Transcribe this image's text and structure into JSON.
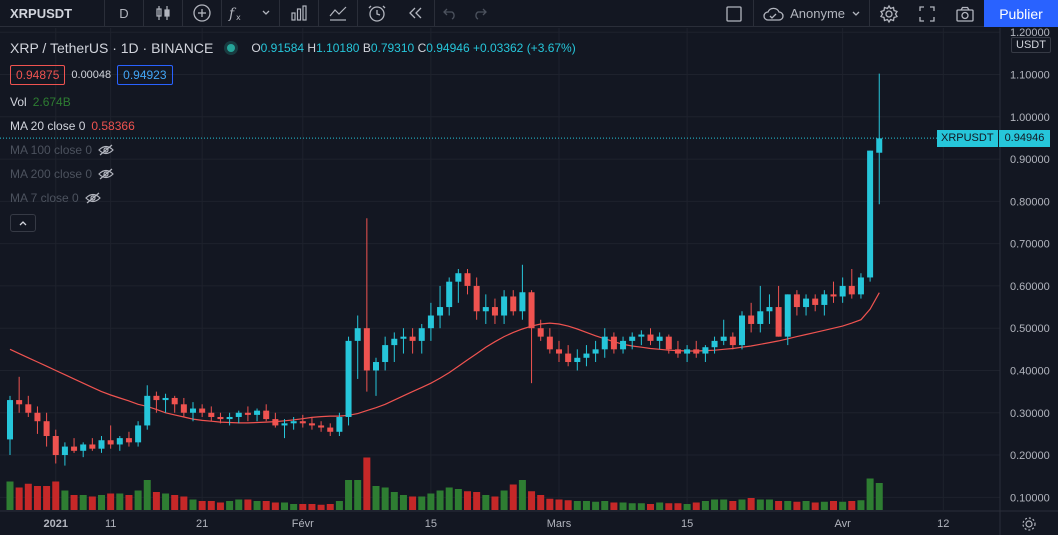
{
  "toolbar": {
    "symbol": "XRPUSDT",
    "interval": "D",
    "user_label": "Anonyme",
    "publish_label": "Publier"
  },
  "legend": {
    "title": "XRP / TetherUS · 1D · BINANCE",
    "o_key": "O",
    "o_val": "0.91584",
    "h_key": "H",
    "h_val": "1.10180",
    "b_key": "B",
    "b_val": "0.79310",
    "c_key": "C",
    "c_val": "0.94946",
    "change": "+0.03362 (+3.67%)",
    "bid": "0.94875",
    "spread": "0.00048",
    "ask": "0.94923",
    "vol_label": "Vol",
    "vol_val": "2.674B",
    "ma20_label": "MA 20 close 0",
    "ma20_val": "0.58366",
    "ma100_label": "MA 100 close 0",
    "ma200_label": "MA 200 close 0",
    "ma7_label": "MA 7 close 0"
  },
  "price_axis": {
    "currency": "USDT",
    "last_symbol": "XRPUSDT",
    "last_price": "0.94946",
    "ticks": [
      "1.20000",
      "1.10000",
      "1.00000",
      "0.90000",
      "0.80000",
      "0.70000",
      "0.60000",
      "0.50000",
      "0.40000",
      "0.30000",
      "0.20000",
      "0.10000"
    ]
  },
  "time_axis": {
    "labels": [
      {
        "text": "2021",
        "day": 5,
        "bold": true
      },
      {
        "text": "11",
        "day": 11,
        "bold": false
      },
      {
        "text": "21",
        "day": 21,
        "bold": false
      },
      {
        "text": "Févr",
        "day": 32,
        "bold": false
      },
      {
        "text": "15",
        "day": 46,
        "bold": false
      },
      {
        "text": "Mars",
        "day": 60,
        "bold": false
      },
      {
        "text": "15",
        "day": 74,
        "bold": false
      },
      {
        "text": "Avr",
        "day": 91,
        "bold": false
      },
      {
        "text": "12",
        "day": 102,
        "bold": false
      }
    ]
  },
  "colors": {
    "up": "#26c6da",
    "down": "#ef5350",
    "vol_up": "#2e7d32",
    "vol_down": "#c62828",
    "ma": "#ef5350",
    "accent": "#2962ff"
  },
  "chart_data": {
    "type": "candlestick",
    "title": "XRP / TetherUS 1D BINANCE",
    "ylim": [
      0.07,
      1.21
    ],
    "start_day": 0,
    "ohlc": [
      [
        0.237,
        0.34,
        0.2,
        0.33
      ],
      [
        0.33,
        0.385,
        0.3,
        0.32
      ],
      [
        0.32,
        0.34,
        0.29,
        0.3
      ],
      [
        0.3,
        0.315,
        0.25,
        0.28
      ],
      [
        0.28,
        0.3,
        0.22,
        0.245
      ],
      [
        0.245,
        0.26,
        0.18,
        0.2
      ],
      [
        0.2,
        0.23,
        0.175,
        0.22
      ],
      [
        0.22,
        0.24,
        0.205,
        0.21
      ],
      [
        0.21,
        0.23,
        0.195,
        0.225
      ],
      [
        0.225,
        0.24,
        0.21,
        0.215
      ],
      [
        0.215,
        0.245,
        0.205,
        0.235
      ],
      [
        0.235,
        0.27,
        0.215,
        0.225
      ],
      [
        0.225,
        0.245,
        0.21,
        0.24
      ],
      [
        0.24,
        0.255,
        0.22,
        0.23
      ],
      [
        0.23,
        0.28,
        0.22,
        0.27
      ],
      [
        0.27,
        0.365,
        0.26,
        0.34
      ],
      [
        0.34,
        0.35,
        0.3,
        0.33
      ],
      [
        0.33,
        0.345,
        0.3,
        0.335
      ],
      [
        0.335,
        0.34,
        0.3,
        0.32
      ],
      [
        0.32,
        0.335,
        0.29,
        0.3
      ],
      [
        0.3,
        0.325,
        0.28,
        0.31
      ],
      [
        0.31,
        0.32,
        0.29,
        0.3
      ],
      [
        0.3,
        0.315,
        0.28,
        0.29
      ],
      [
        0.29,
        0.3,
        0.275,
        0.285
      ],
      [
        0.285,
        0.3,
        0.27,
        0.29
      ],
      [
        0.29,
        0.305,
        0.275,
        0.3
      ],
      [
        0.3,
        0.315,
        0.28,
        0.295
      ],
      [
        0.295,
        0.31,
        0.28,
        0.305
      ],
      [
        0.305,
        0.32,
        0.28,
        0.285
      ],
      [
        0.285,
        0.3,
        0.265,
        0.27
      ],
      [
        0.27,
        0.285,
        0.24,
        0.275
      ],
      [
        0.275,
        0.29,
        0.26,
        0.28
      ],
      [
        0.28,
        0.295,
        0.265,
        0.275
      ],
      [
        0.275,
        0.29,
        0.26,
        0.27
      ],
      [
        0.27,
        0.28,
        0.255,
        0.265
      ],
      [
        0.265,
        0.275,
        0.245,
        0.255
      ],
      [
        0.255,
        0.3,
        0.245,
        0.29
      ],
      [
        0.29,
        0.48,
        0.27,
        0.47
      ],
      [
        0.47,
        0.53,
        0.38,
        0.5
      ],
      [
        0.5,
        0.76,
        0.35,
        0.4
      ],
      [
        0.4,
        0.43,
        0.34,
        0.42
      ],
      [
        0.42,
        0.48,
        0.4,
        0.46
      ],
      [
        0.46,
        0.49,
        0.42,
        0.475
      ],
      [
        0.475,
        0.5,
        0.44,
        0.48
      ],
      [
        0.48,
        0.5,
        0.44,
        0.47
      ],
      [
        0.47,
        0.51,
        0.44,
        0.5
      ],
      [
        0.5,
        0.56,
        0.47,
        0.53
      ],
      [
        0.53,
        0.6,
        0.5,
        0.55
      ],
      [
        0.55,
        0.62,
        0.53,
        0.61
      ],
      [
        0.61,
        0.64,
        0.56,
        0.63
      ],
      [
        0.63,
        0.64,
        0.58,
        0.6
      ],
      [
        0.6,
        0.62,
        0.52,
        0.54
      ],
      [
        0.54,
        0.58,
        0.51,
        0.55
      ],
      [
        0.55,
        0.57,
        0.51,
        0.53
      ],
      [
        0.53,
        0.59,
        0.51,
        0.575
      ],
      [
        0.575,
        0.59,
        0.53,
        0.54
      ],
      [
        0.54,
        0.65,
        0.52,
        0.585
      ],
      [
        0.585,
        0.59,
        0.37,
        0.5
      ],
      [
        0.5,
        0.52,
        0.47,
        0.48
      ],
      [
        0.48,
        0.5,
        0.44,
        0.45
      ],
      [
        0.45,
        0.47,
        0.42,
        0.44
      ],
      [
        0.44,
        0.46,
        0.41,
        0.42
      ],
      [
        0.42,
        0.45,
        0.4,
        0.43
      ],
      [
        0.43,
        0.46,
        0.41,
        0.44
      ],
      [
        0.44,
        0.47,
        0.42,
        0.45
      ],
      [
        0.45,
        0.5,
        0.43,
        0.48
      ],
      [
        0.48,
        0.49,
        0.44,
        0.45
      ],
      [
        0.45,
        0.48,
        0.44,
        0.47
      ],
      [
        0.47,
        0.49,
        0.45,
        0.48
      ],
      [
        0.48,
        0.495,
        0.46,
        0.485
      ],
      [
        0.485,
        0.5,
        0.46,
        0.47
      ],
      [
        0.47,
        0.49,
        0.45,
        0.48
      ],
      [
        0.48,
        0.485,
        0.44,
        0.45
      ],
      [
        0.45,
        0.47,
        0.43,
        0.44
      ],
      [
        0.44,
        0.46,
        0.42,
        0.45
      ],
      [
        0.45,
        0.47,
        0.43,
        0.44
      ],
      [
        0.44,
        0.46,
        0.42,
        0.455
      ],
      [
        0.455,
        0.48,
        0.44,
        0.47
      ],
      [
        0.47,
        0.52,
        0.46,
        0.48
      ],
      [
        0.48,
        0.49,
        0.45,
        0.46
      ],
      [
        0.46,
        0.54,
        0.45,
        0.53
      ],
      [
        0.53,
        0.56,
        0.49,
        0.51
      ],
      [
        0.51,
        0.6,
        0.49,
        0.54
      ],
      [
        0.54,
        0.58,
        0.51,
        0.55
      ],
      [
        0.55,
        0.6,
        0.48,
        0.48
      ],
      [
        0.48,
        0.58,
        0.46,
        0.58
      ],
      [
        0.58,
        0.59,
        0.53,
        0.55
      ],
      [
        0.55,
        0.58,
        0.53,
        0.57
      ],
      [
        0.57,
        0.58,
        0.54,
        0.555
      ],
      [
        0.555,
        0.59,
        0.53,
        0.58
      ],
      [
        0.58,
        0.61,
        0.56,
        0.575
      ],
      [
        0.575,
        0.62,
        0.56,
        0.6
      ],
      [
        0.6,
        0.64,
        0.57,
        0.58
      ],
      [
        0.58,
        0.63,
        0.57,
        0.62
      ],
      [
        0.62,
        0.92,
        0.61,
        0.92
      ],
      [
        0.915,
        1.102,
        0.793,
        0.949
      ]
    ],
    "volume": [
      0.38,
      0.3,
      0.35,
      0.32,
      0.32,
      0.38,
      0.26,
      0.2,
      0.2,
      0.18,
      0.2,
      0.22,
      0.22,
      0.2,
      0.26,
      0.4,
      0.24,
      0.22,
      0.2,
      0.18,
      0.14,
      0.12,
      0.12,
      0.1,
      0.12,
      0.14,
      0.14,
      0.12,
      0.12,
      0.1,
      0.1,
      0.08,
      0.08,
      0.08,
      0.07,
      0.08,
      0.12,
      0.4,
      0.4,
      0.7,
      0.32,
      0.3,
      0.24,
      0.2,
      0.18,
      0.18,
      0.22,
      0.26,
      0.3,
      0.28,
      0.25,
      0.24,
      0.2,
      0.18,
      0.26,
      0.34,
      0.4,
      0.25,
      0.2,
      0.15,
      0.14,
      0.13,
      0.12,
      0.12,
      0.11,
      0.12,
      0.1,
      0.1,
      0.09,
      0.09,
      0.08,
      0.1,
      0.09,
      0.09,
      0.08,
      0.1,
      0.12,
      0.14,
      0.14,
      0.12,
      0.14,
      0.16,
      0.14,
      0.14,
      0.12,
      0.12,
      0.11,
      0.12,
      0.1,
      0.11,
      0.12,
      0.11,
      0.12,
      0.13,
      0.42,
      0.36
    ],
    "ma20": [
      0.45,
      0.44,
      0.43,
      0.42,
      0.41,
      0.4,
      0.39,
      0.38,
      0.37,
      0.36,
      0.35,
      0.342,
      0.335,
      0.328,
      0.32,
      0.315,
      0.308,
      0.3,
      0.295,
      0.29,
      0.285,
      0.282,
      0.28,
      0.278,
      0.277,
      0.276,
      0.276,
      0.277,
      0.278,
      0.279,
      0.281,
      0.283,
      0.286,
      0.289,
      0.291,
      0.292,
      0.292,
      0.294,
      0.298,
      0.305,
      0.312,
      0.32,
      0.33,
      0.34,
      0.35,
      0.36,
      0.37,
      0.382,
      0.395,
      0.41,
      0.425,
      0.44,
      0.455,
      0.468,
      0.48,
      0.49,
      0.498,
      0.505,
      0.51,
      0.512,
      0.51,
      0.505,
      0.498,
      0.49,
      0.482,
      0.475,
      0.468,
      0.462,
      0.458,
      0.455,
      0.452,
      0.45,
      0.448,
      0.447,
      0.446,
      0.446,
      0.447,
      0.448,
      0.45,
      0.452,
      0.455,
      0.458,
      0.462,
      0.466,
      0.47,
      0.475,
      0.48,
      0.485,
      0.49,
      0.495,
      0.5,
      0.505,
      0.512,
      0.52,
      0.545,
      0.584
    ]
  }
}
